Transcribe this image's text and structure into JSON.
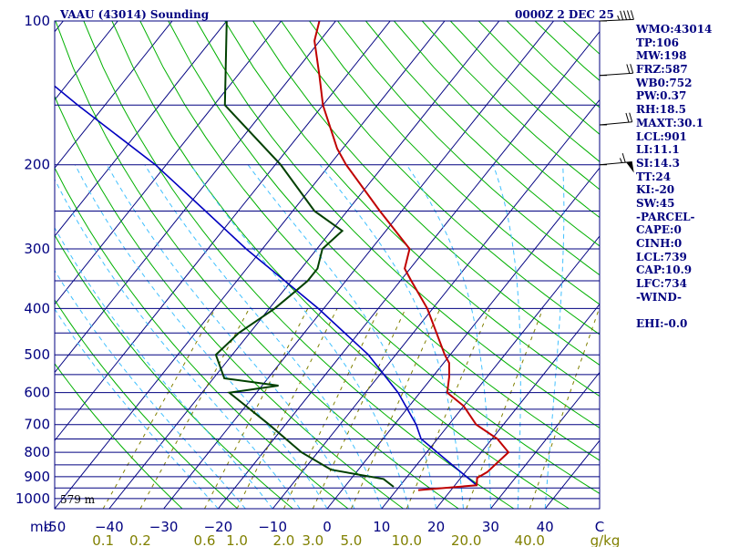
{
  "header": {
    "title": "VAAU (43014) Sounding",
    "time": "0000Z  2 DEC 25"
  },
  "indices": [
    "WMO:43014",
    "TP:106",
    "MW:198",
    "FRZ:587",
    "WB0:752",
    "PW:0.37",
    "RH:18.5",
    "MAXT:30.1",
    "LCL:901",
    "LI:11.1",
    "SI:14.3",
    "TT:24",
    "KI:-20",
    "SW:45",
    "-PARCEL-",
    "CAPE:0",
    "CINH:0",
    "LCL:739",
    "CAP:10.9",
    "LFC:734",
    "-WIND-",
    "",
    "EHI:-0.0"
  ],
  "colors": {
    "isobar": "#000080",
    "isotherm": "#000080",
    "dry_adiabat": "#00b000",
    "moist_adiabat": "#40c0ff",
    "mixing_ratio": "#808000",
    "temperature": "#c00000",
    "dewpoint": "#004000",
    "parcel": "#0000c0",
    "text_navy": "#000080",
    "text_olive": "#808000"
  },
  "chart_data": {
    "type": "skew-t",
    "pressure_unit": "mb",
    "plim": [
      1000,
      100
    ],
    "tlim": [
      -50,
      50
    ],
    "isobars": [
      1000,
      950,
      900,
      850,
      800,
      750,
      700,
      650,
      600,
      550,
      500,
      450,
      400,
      350,
      300,
      250,
      200,
      150,
      100
    ],
    "pressure_ticks": [
      100,
      200,
      300,
      400,
      500,
      600,
      700,
      800,
      900,
      1000
    ],
    "temp_ticks": [
      {
        "label": "-50",
        "value": -50
      },
      {
        "label": "−40",
        "value": -40
      },
      {
        "label": "−30",
        "value": -30
      },
      {
        "label": "−20",
        "value": -20
      },
      {
        "label": "−10",
        "value": -10
      },
      {
        "label": "0",
        "value": 0
      },
      {
        "label": "10",
        "value": 10
      },
      {
        "label": "20",
        "value": 20
      },
      {
        "label": "30",
        "value": 30
      },
      {
        "label": "40",
        "value": 40
      },
      {
        "label": "C",
        "value": 50
      }
    ],
    "mixing_ratio_ticks": [
      {
        "label": "0.1",
        "value": 0.1
      },
      {
        "label": "0.2",
        "value": 0.2
      },
      {
        "label": "0.6",
        "value": 0.6
      },
      {
        "label": "1.0",
        "value": 1.0
      },
      {
        "label": "2.0",
        "value": 2.0
      },
      {
        "label": "3.0",
        "value": 3.0
      },
      {
        "label": "5.0",
        "value": 5.0
      },
      {
        "label": "10.0",
        "value": 10.0
      },
      {
        "label": "20.0",
        "value": 20.0
      },
      {
        "label": "40.0",
        "value": 40.0
      }
    ],
    "mixing_unit": "g/kg",
    "surface_height_label": "579 m",
    "temperature": [
      {
        "p": 960,
        "t": 14
      },
      {
        "p": 938,
        "t": 24
      },
      {
        "p": 905,
        "t": 23
      },
      {
        "p": 880,
        "t": 24
      },
      {
        "p": 800,
        "t": 25
      },
      {
        "p": 750,
        "t": 21
      },
      {
        "p": 700,
        "t": 15
      },
      {
        "p": 640,
        "t": 10
      },
      {
        "p": 600,
        "t": 5
      },
      {
        "p": 555,
        "t": 3
      },
      {
        "p": 520,
        "t": 1
      },
      {
        "p": 500,
        "t": -1
      },
      {
        "p": 400,
        "t": -11
      },
      {
        "p": 350,
        "t": -18
      },
      {
        "p": 330,
        "t": -21
      },
      {
        "p": 300,
        "t": -23
      },
      {
        "p": 250,
        "t": -34
      },
      {
        "p": 200,
        "t": -47
      },
      {
        "p": 185,
        "t": -51
      },
      {
        "p": 150,
        "t": -60
      },
      {
        "p": 130,
        "t": -65
      },
      {
        "p": 110,
        "t": -71
      },
      {
        "p": 100,
        "t": -73
      }
    ],
    "dewpoint": [
      {
        "p": 945,
        "t": 9
      },
      {
        "p": 910,
        "t": 6
      },
      {
        "p": 870,
        "t": -5
      },
      {
        "p": 800,
        "t": -13
      },
      {
        "p": 700,
        "t": -23
      },
      {
        "p": 600,
        "t": -35
      },
      {
        "p": 580,
        "t": -27
      },
      {
        "p": 560,
        "t": -38
      },
      {
        "p": 500,
        "t": -43
      },
      {
        "p": 450,
        "t": -42
      },
      {
        "p": 400,
        "t": -39
      },
      {
        "p": 375,
        "t": -38
      },
      {
        "p": 350,
        "t": -37
      },
      {
        "p": 330,
        "t": -37
      },
      {
        "p": 300,
        "t": -39
      },
      {
        "p": 275,
        "t": -38
      },
      {
        "p": 250,
        "t": -46
      },
      {
        "p": 200,
        "t": -59
      },
      {
        "p": 150,
        "t": -78
      },
      {
        "p": 100,
        "t": -90
      }
    ],
    "parcel": [
      {
        "p": 938,
        "t": 24
      },
      {
        "p": 750,
        "t": 7
      },
      {
        "p": 700,
        "t": 4
      },
      {
        "p": 600,
        "t": -4
      },
      {
        "p": 500,
        "t": -15
      },
      {
        "p": 400,
        "t": -31
      },
      {
        "p": 300,
        "t": -53
      },
      {
        "p": 250,
        "t": -66
      },
      {
        "p": 200,
        "t": -82
      },
      {
        "p": 150,
        "t": -105
      },
      {
        "p": 130,
        "t": -116
      }
    ],
    "wind_barbs": [
      {
        "p": 100,
        "dir": 260,
        "kt": 45
      },
      {
        "p": 130,
        "dir": 255,
        "kt": 20
      },
      {
        "p": 165,
        "dir": 250,
        "kt": 20
      },
      {
        "p": 200,
        "dir": 250,
        "kt": 65
      }
    ]
  }
}
